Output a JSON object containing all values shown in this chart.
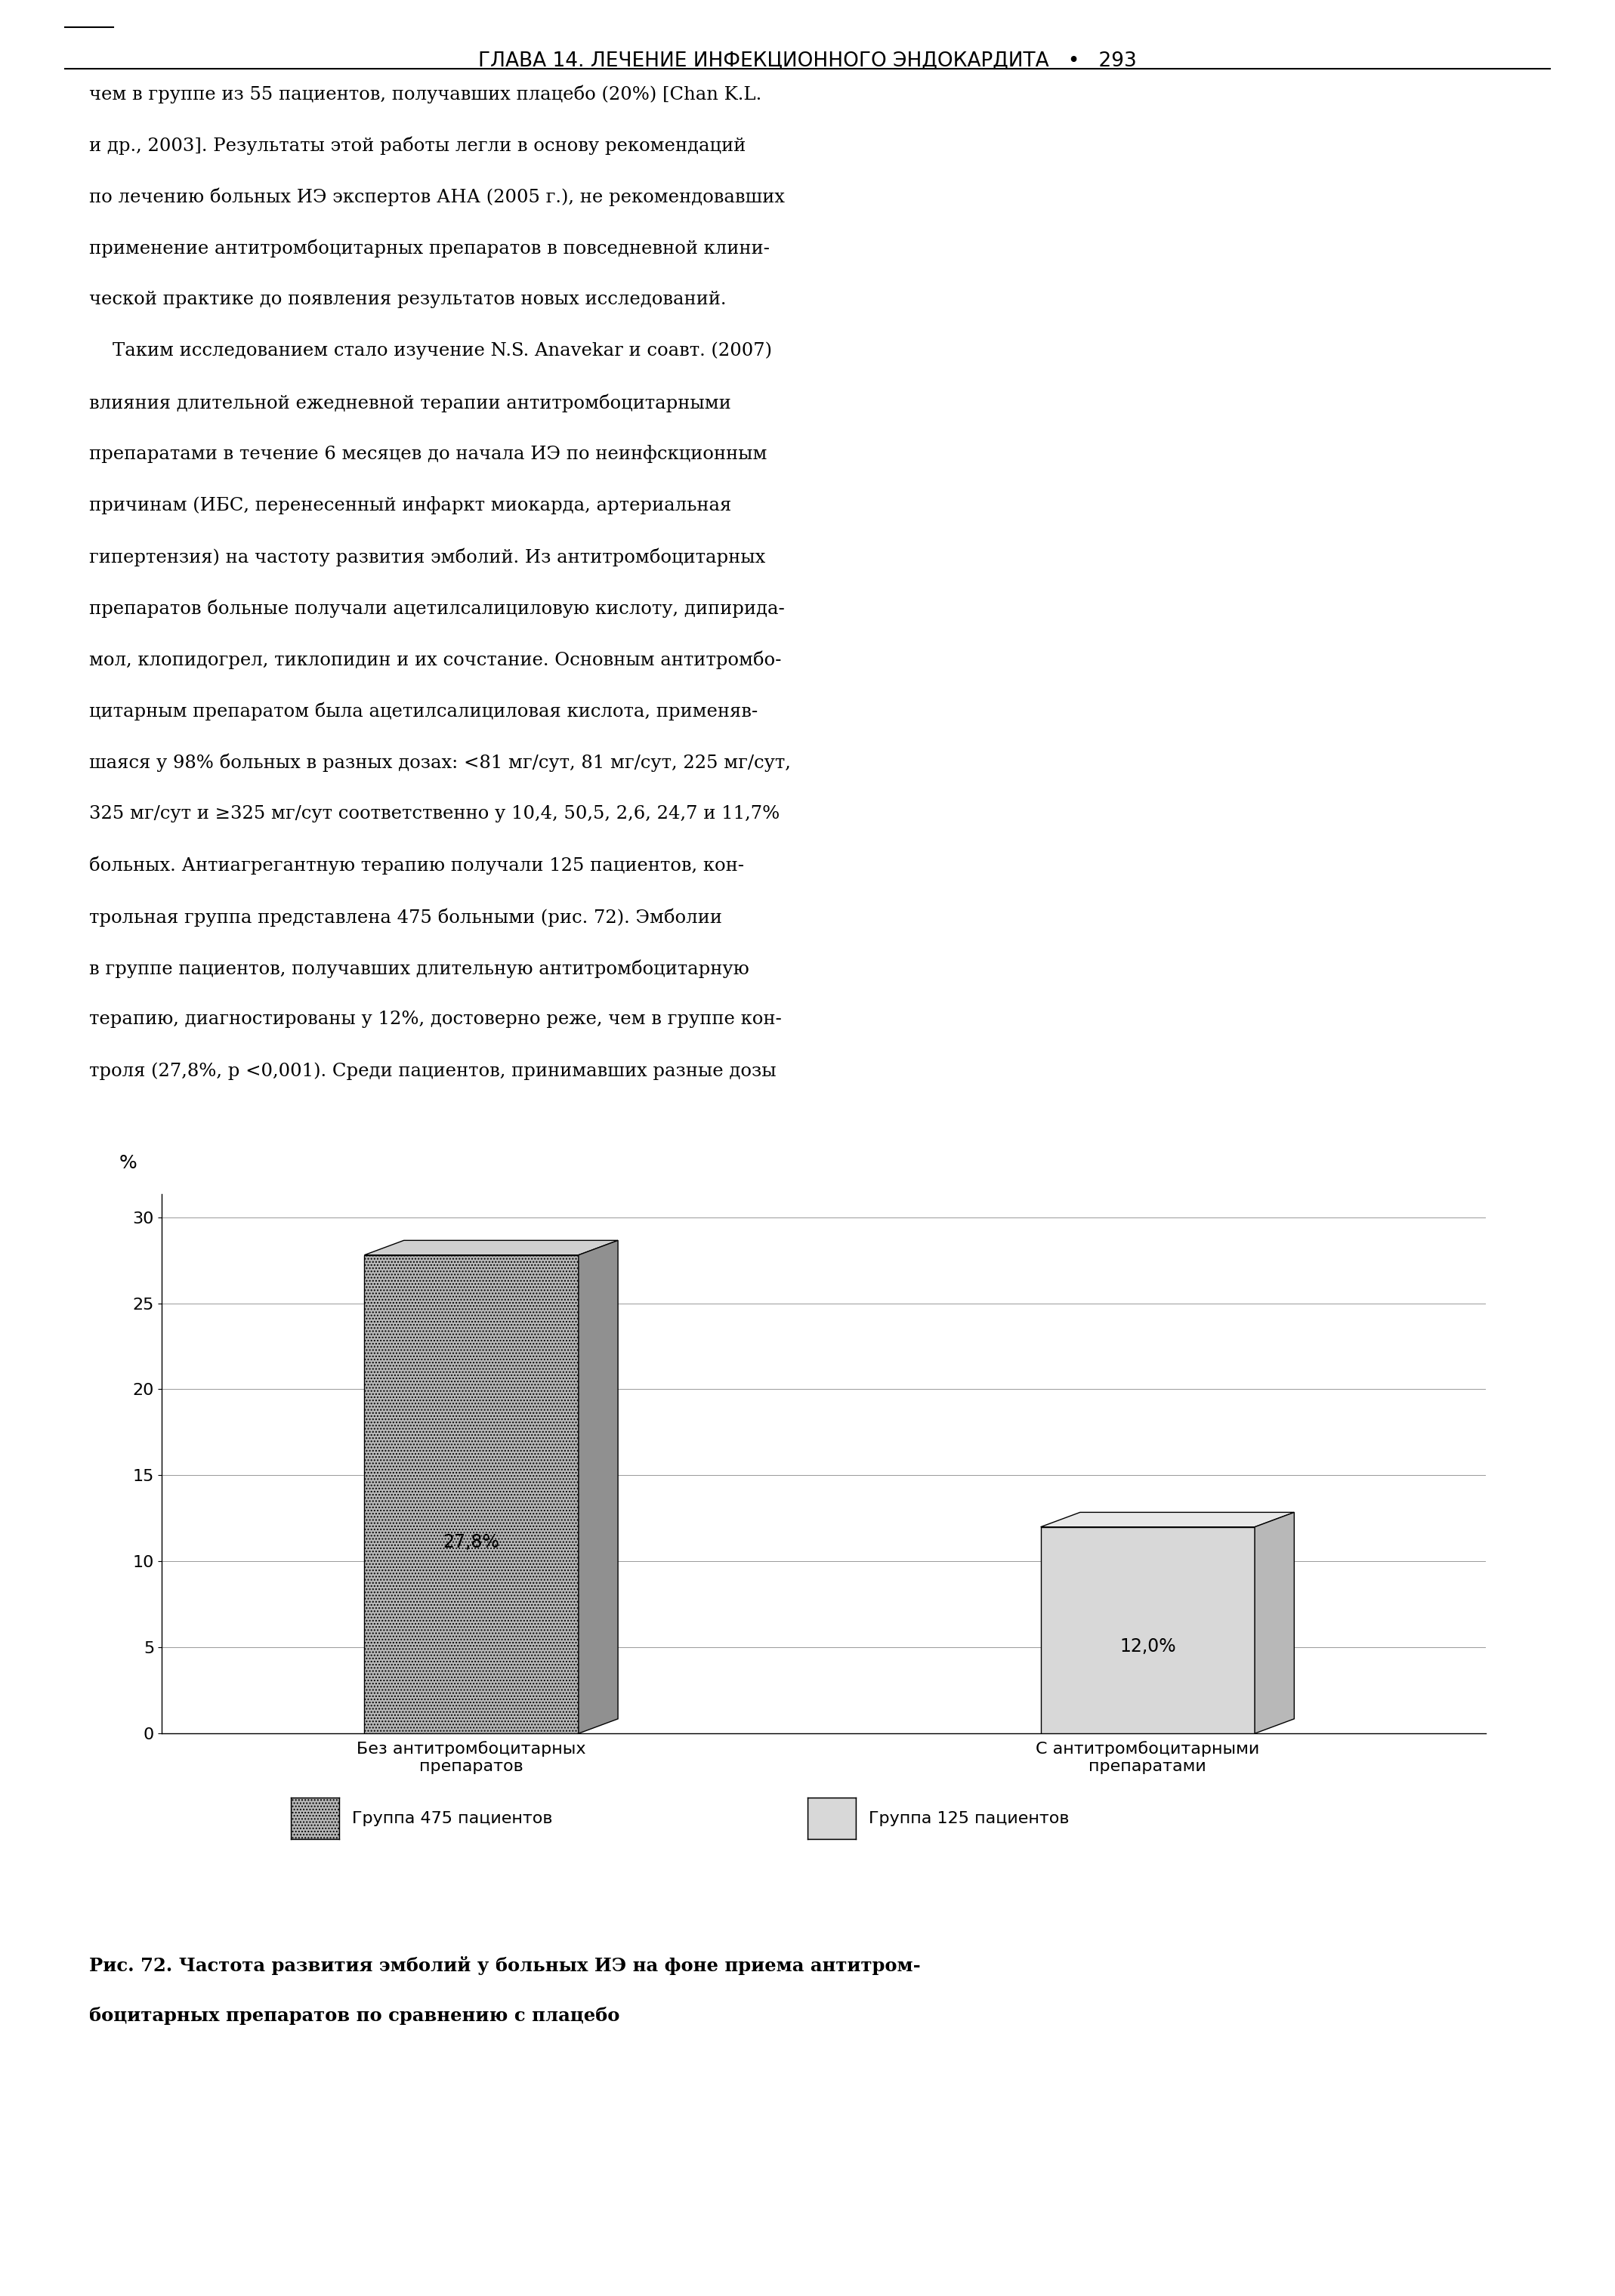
{
  "categories": [
    "Без антитромбоцитарных\nпрепаратов",
    "С антитромбоцитарными\nпрепаратами"
  ],
  "values": [
    27.8,
    12.0
  ],
  "labels": [
    "27,8%",
    "12,0%"
  ],
  "ylabel": "%",
  "ylim": [
    0,
    30
  ],
  "yticks": [
    0,
    5,
    10,
    15,
    20,
    25,
    30
  ],
  "bar_front_colors": [
    "#b8b8b8",
    "#d8d8d8"
  ],
  "bar_top_colors": [
    "#d0d0d0",
    "#e8e8e8"
  ],
  "bar_side_colors": [
    "#909090",
    "#b8b8b8"
  ],
  "bar_edge_color": "#000000",
  "bar_hatch": [
    "....",
    ""
  ],
  "legend_labels": [
    "Группа 475 пациентов",
    "Группа 125 пациентов"
  ],
  "legend_front_colors": [
    "#b8b8b8",
    "#d8d8d8"
  ],
  "legend_hatches": [
    "....",
    ""
  ],
  "background_color": "#ffffff",
  "grid_color": "#999999",
  "header": "ГЛАВА 14. ЛЕЧЕНИЕ ИНФЕКЦИОННОГО ЭНДОКАРДИТА   •   293",
  "caption_line1": "Рис. 72. Частота развития эмболий у больных ИЭ на фоне приема антитром-",
  "caption_line2": "боцитарных препаратов по сравнению с плацебо",
  "text_lines": [
    "чем в группе из 55 пациентов, получавших плацебо (20%) [Chan K.L.",
    "и др., 2003]. Результаты этой работы легли в основу рекомендаций",
    "по лечению больных ИЭ экспертов АНА (2005 г.), не рекомендовавших",
    "применение антитромбоцитарных препаратов в повседневной клини-",
    "ческой практике до появления результатов новых исследований.",
    "    Таким исследованием стало изучение N.S. Anavekar и соавт. (2007)",
    "влияния длительной ежедневной терапии антитромбоцитарными",
    "препаратами в течение 6 месяцев до начала ИЭ по неинфскционным",
    "причинам (ИБС, перенесенный инфаркт миокарда, артериальная",
    "гипертензия) на частоту развития эмболий. Из антитромбоцитарных",
    "препаратов больные получали ацетилсалициловую кислоту, дипирида-",
    "мол, клопидогрел, тиклопидин и их сочстание. Основным антитромбо-",
    "цитарным препаратом была ацетилсалициловая кислота, применяв-",
    "шаяся у 98% больных в разных дозах: <81 мг/сут, 81 мг/сут, 225 мг/сут,",
    "325 мг/сут и ≥325 мг/сут соответственно у 10,4, 50,5, 2,6, 24,7 и 11,7%",
    "больных. Антиагрегантную терапию получали 125 пациентов, кон-",
    "трольная группа представлена 475 больными (рис. 72). Эмболии",
    "в группе пациентов, получавших длительную антитромбоцитарную",
    "терапию, диагностированы у 12%, достоверно реже, чем в группе кон-",
    "троля (27,8%, р <0,001). Среди пациентов, принимавших разные дозы"
  ]
}
